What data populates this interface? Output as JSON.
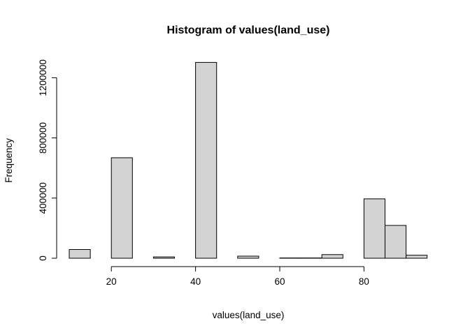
{
  "chart_data": {
    "type": "bar",
    "title": "Histogram of values(land_use)",
    "xlabel": "values(land_use)",
    "ylabel": "Frequency",
    "xlim": [
      10,
      95
    ],
    "ylim": [
      0,
      1300000
    ],
    "x_ticks": [
      20,
      40,
      60,
      80
    ],
    "x_tick_labels": [
      "20",
      "40",
      "60",
      "80"
    ],
    "y_ticks": [
      0,
      400000,
      800000,
      1200000
    ],
    "y_tick_labels": [
      "0",
      "400000",
      "800000",
      "1200000"
    ],
    "grid": false,
    "bar_color": "#d3d3d3",
    "bins": [
      {
        "x0": 10,
        "x1": 15,
        "value": 58000
      },
      {
        "x0": 15,
        "x1": 20,
        "value": 0
      },
      {
        "x0": 20,
        "x1": 25,
        "value": 668000
      },
      {
        "x0": 25,
        "x1": 30,
        "value": 0
      },
      {
        "x0": 30,
        "x1": 35,
        "value": 9000
      },
      {
        "x0": 35,
        "x1": 40,
        "value": 0
      },
      {
        "x0": 40,
        "x1": 45,
        "value": 1302000
      },
      {
        "x0": 45,
        "x1": 50,
        "value": 0
      },
      {
        "x0": 50,
        "x1": 55,
        "value": 14000
      },
      {
        "x0": 55,
        "x1": 60,
        "value": 0
      },
      {
        "x0": 60,
        "x1": 65,
        "value": 2000
      },
      {
        "x0": 65,
        "x1": 70,
        "value": 2000
      },
      {
        "x0": 70,
        "x1": 75,
        "value": 24000
      },
      {
        "x0": 75,
        "x1": 80,
        "value": 0
      },
      {
        "x0": 80,
        "x1": 85,
        "value": 395000
      },
      {
        "x0": 85,
        "x1": 90,
        "value": 218000
      },
      {
        "x0": 90,
        "x1": 95,
        "value": 20000
      }
    ]
  }
}
